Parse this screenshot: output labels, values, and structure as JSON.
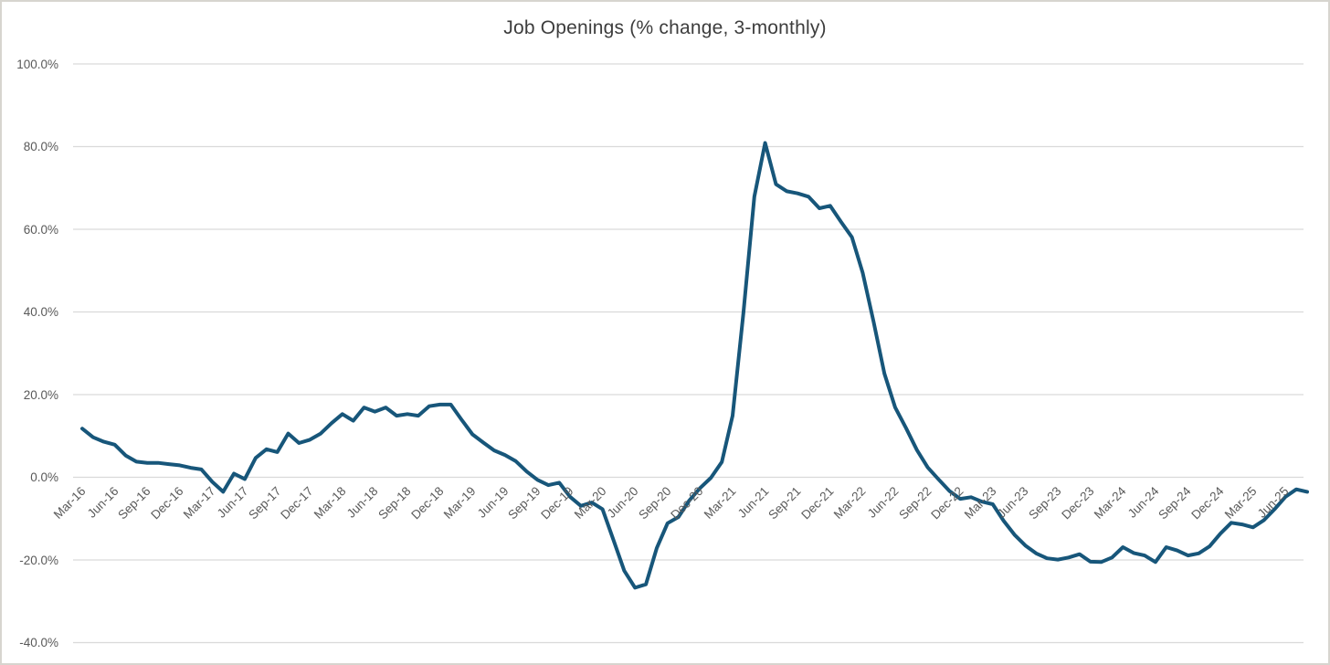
{
  "title": "Job Openings (% change, 3-monthly)",
  "colors": {
    "line": "#17567a",
    "gridline": "#d9d9d9",
    "axis_label": "#595959",
    "title_text": "#3d3d3d",
    "background": "#ffffff",
    "frame_border": "#d7d5cf"
  },
  "y_axis": {
    "tick_labels": [
      "100.0%",
      "80.0%",
      "60.0%",
      "40.0%",
      "20.0%",
      "0.0%",
      "-20.0%",
      "-40.0%"
    ],
    "max": 100,
    "min": -40,
    "step": 20
  },
  "x_axis": {
    "tick_labels": [
      "Mar-16",
      "Jun-16",
      "Sep-16",
      "Dec-16",
      "Mar-17",
      "Jun-17",
      "Sep-17",
      "Dec-17",
      "Mar-18",
      "Jun-18",
      "Sep-18",
      "Dec-18",
      "Mar-19",
      "Jun-19",
      "Sep-19",
      "Dec-19",
      "Mar-20",
      "Jun-20",
      "Sep-20",
      "Dec-20",
      "Mar-21",
      "Jun-21",
      "Sep-21",
      "Dec-21",
      "Mar-22",
      "Jun-22",
      "Sep-22",
      "Dec-22",
      "Mar-23",
      "Jun-23",
      "Sep-23",
      "Dec-23",
      "Mar-24",
      "Jun-24",
      "Sep-24",
      "Dec-24",
      "Mar-25",
      "Jun-25"
    ]
  },
  "chart_data": {
    "type": "line",
    "title": "Job Openings (% change, 3-monthly)",
    "ylabel": "",
    "xlabel": "",
    "ylim": [
      -40,
      100
    ],
    "y_tick_step": 20,
    "grid": "horizontal",
    "legend": "none",
    "line_color": "#17567a",
    "x_tick_every_months": 3,
    "x": [
      "Mar-16",
      "Apr-16",
      "May-16",
      "Jun-16",
      "Jul-16",
      "Aug-16",
      "Sep-16",
      "Oct-16",
      "Nov-16",
      "Dec-16",
      "Jan-17",
      "Feb-17",
      "Mar-17",
      "Apr-17",
      "May-17",
      "Jun-17",
      "Jul-17",
      "Aug-17",
      "Sep-17",
      "Oct-17",
      "Nov-17",
      "Dec-17",
      "Jan-18",
      "Feb-18",
      "Mar-18",
      "Apr-18",
      "May-18",
      "Jun-18",
      "Jul-18",
      "Aug-18",
      "Sep-18",
      "Oct-18",
      "Nov-18",
      "Dec-18",
      "Jan-19",
      "Feb-19",
      "Mar-19",
      "Apr-19",
      "May-19",
      "Jun-19",
      "Jul-19",
      "Aug-19",
      "Sep-19",
      "Oct-19",
      "Nov-19",
      "Dec-19",
      "Jan-20",
      "Feb-20",
      "Mar-20",
      "Apr-20",
      "May-20",
      "Jun-20",
      "Jul-20",
      "Aug-20",
      "Sep-20",
      "Oct-20",
      "Nov-20",
      "Dec-20",
      "Jan-21",
      "Feb-21",
      "Mar-21",
      "Apr-21",
      "May-21",
      "Jun-21",
      "Jul-21",
      "Aug-21",
      "Sep-21",
      "Oct-21",
      "Nov-21",
      "Dec-21",
      "Jan-22",
      "Feb-22",
      "Mar-22",
      "Apr-22",
      "May-22",
      "Jun-22",
      "Jul-22",
      "Aug-22",
      "Sep-22",
      "Oct-22",
      "Nov-22",
      "Dec-22",
      "Jan-23",
      "Feb-23",
      "Mar-23",
      "Apr-23",
      "May-23",
      "Jun-23",
      "Jul-23",
      "Aug-23",
      "Sep-23",
      "Oct-23",
      "Nov-23",
      "Dec-23",
      "Jan-24",
      "Feb-24",
      "Mar-24",
      "Apr-24",
      "May-24",
      "Jun-24",
      "Jul-24",
      "Aug-24",
      "Sep-24",
      "Oct-24",
      "Nov-24",
      "Dec-24",
      "Jan-25",
      "Feb-25",
      "Mar-25",
      "Apr-25",
      "May-25",
      "Jun-25",
      "Jul-25",
      "Aug-25"
    ],
    "values": [
      11.9,
      9.8,
      8.7,
      8.0,
      5.4,
      3.9,
      3.6,
      3.6,
      3.3,
      3.0,
      2.4,
      2.0,
      -1.0,
      -3.4,
      1.0,
      -0.3,
      4.8,
      6.9,
      6.2,
      10.7,
      8.4,
      9.2,
      10.7,
      13.2,
      15.4,
      13.8,
      17.0,
      16.0,
      17.0,
      15.0,
      15.4,
      15.0,
      17.3,
      17.7,
      17.7,
      14.0,
      10.5,
      8.5,
      6.6,
      5.5,
      4.0,
      1.5,
      -0.5,
      -1.8,
      -1.2,
      -4.6,
      -6.8,
      -6.0,
      -7.6,
      -15.0,
      -22.5,
      -26.6,
      -25.8,
      -17.0,
      -11.0,
      -9.5,
      -5.5,
      -2.5,
      0.0,
      3.8,
      15.0,
      40.0,
      68.0,
      81.0,
      71.0,
      69.3,
      68.8,
      68.0,
      65.2,
      65.8,
      61.9,
      58.2,
      49.6,
      37.8,
      25.2,
      17.0,
      12.0,
      6.7,
      2.5,
      -0.4,
      -3.2,
      -5.1,
      -4.7,
      -5.8,
      -6.4,
      -10.4,
      -13.8,
      -16.4,
      -18.3,
      -19.5,
      -19.8,
      -19.3,
      -18.5,
      -20.3,
      -20.4,
      -19.3,
      -16.8,
      -18.2,
      -18.8,
      -20.4,
      -16.8,
      -17.6,
      -18.8,
      -18.3,
      -16.6,
      -13.5,
      -10.9,
      -11.3,
      -12.0,
      -10.3,
      -7.6,
      -4.6,
      -2.8,
      -3.4
    ]
  }
}
